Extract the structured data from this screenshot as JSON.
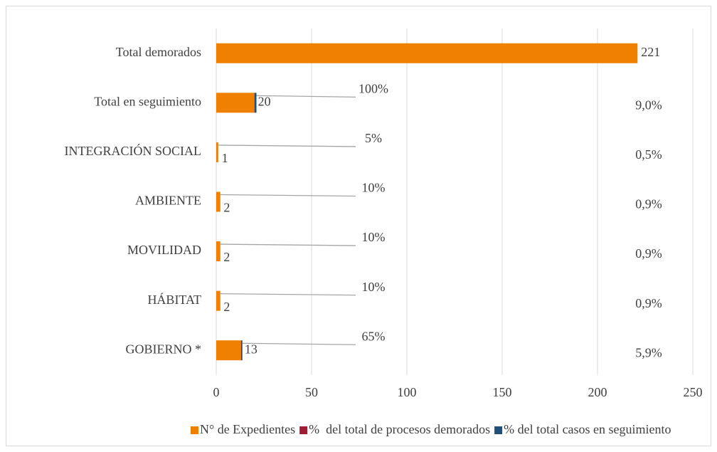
{
  "chart_data": {
    "type": "bar",
    "orientation": "horizontal",
    "stacked": true,
    "categories": [
      "Total demorados",
      "Total en seguimiento",
      "INTEGRACIÓN SOCIAL",
      "AMBIENTE",
      "MOVILIDAD",
      "HÁBITAT",
      "GOBIERNO *"
    ],
    "series": [
      {
        "name": "N° de Expedientes",
        "color": "#f08000",
        "values": [
          221,
          20,
          1,
          2,
          2,
          2,
          13
        ]
      },
      {
        "name": "%  del total de procesos demorados",
        "color": "#9e1b32",
        "values": [
          null,
          0.09,
          0.005,
          0.009,
          0.009,
          0.009,
          0.059
        ],
        "value_labels": [
          null,
          "9,0%",
          "0,5%",
          "0,9%",
          "0,9%",
          "0,9%",
          "5,9%"
        ]
      },
      {
        "name": "% del total casos en seguimiento",
        "color": "#1f4e79",
        "values": [
          null,
          1,
          0.05,
          0.1,
          0.1,
          0.1,
          0.65
        ],
        "value_labels": [
          null,
          "100%",
          "5%",
          "10%",
          "10%",
          "10%",
          "65%"
        ]
      }
    ],
    "xlim": [
      0,
      250
    ],
    "xticks": [
      0,
      50,
      100,
      150,
      200,
      250
    ],
    "grid": true,
    "legend": "bottom"
  }
}
